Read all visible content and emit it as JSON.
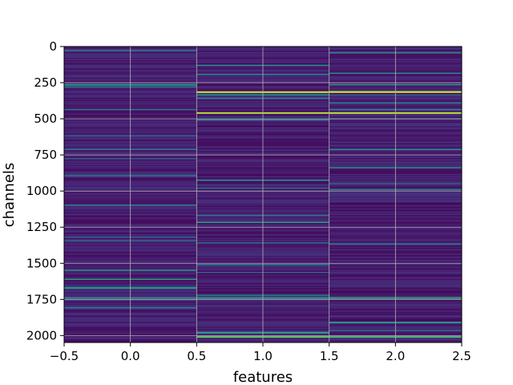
{
  "chart_data": {
    "type": "heatmap",
    "xlabel": "features",
    "ylabel": "channels",
    "xlim": [
      -0.5,
      2.5
    ],
    "ylim": [
      2048,
      0
    ],
    "y_inverted": true,
    "xticks": [
      -0.5,
      0.0,
      0.5,
      1.0,
      1.5,
      2.0,
      2.5
    ],
    "xtick_labels": [
      "−0.5",
      "0.0",
      "0.5",
      "1.0",
      "1.5",
      "2.0",
      "2.5"
    ],
    "yticks": [
      0,
      250,
      500,
      750,
      1000,
      1250,
      1500,
      1750,
      2000
    ],
    "ytick_labels": [
      "0",
      "250",
      "500",
      "750",
      "1000",
      "1250",
      "1500",
      "1750",
      "2000"
    ],
    "grid": true,
    "colormap": "viridis",
    "columns": [
      0,
      1,
      2
    ],
    "rows": 2048,
    "highlight_rows": [
      {
        "column": 1,
        "channel": 315,
        "level": 0.92
      },
      {
        "column": 2,
        "channel": 315,
        "level": 0.95
      },
      {
        "column": 1,
        "channel": 460,
        "level": 0.88
      },
      {
        "column": 2,
        "channel": 460,
        "level": 0.9
      },
      {
        "column": 0,
        "channel": 265,
        "level": 0.55
      },
      {
        "column": 0,
        "channel": 1740,
        "level": 0.5
      },
      {
        "column": 1,
        "channel": 1980,
        "level": 0.6
      },
      {
        "column": 2,
        "channel": 1910,
        "level": 0.55
      },
      {
        "column": 1,
        "channel": 2010,
        "level": 0.75
      },
      {
        "column": 2,
        "channel": 2010,
        "level": 0.7
      },
      {
        "column": 1,
        "channel": 1740,
        "level": 0.55
      },
      {
        "column": 2,
        "channel": 1740,
        "level": 0.6
      }
    ]
  }
}
